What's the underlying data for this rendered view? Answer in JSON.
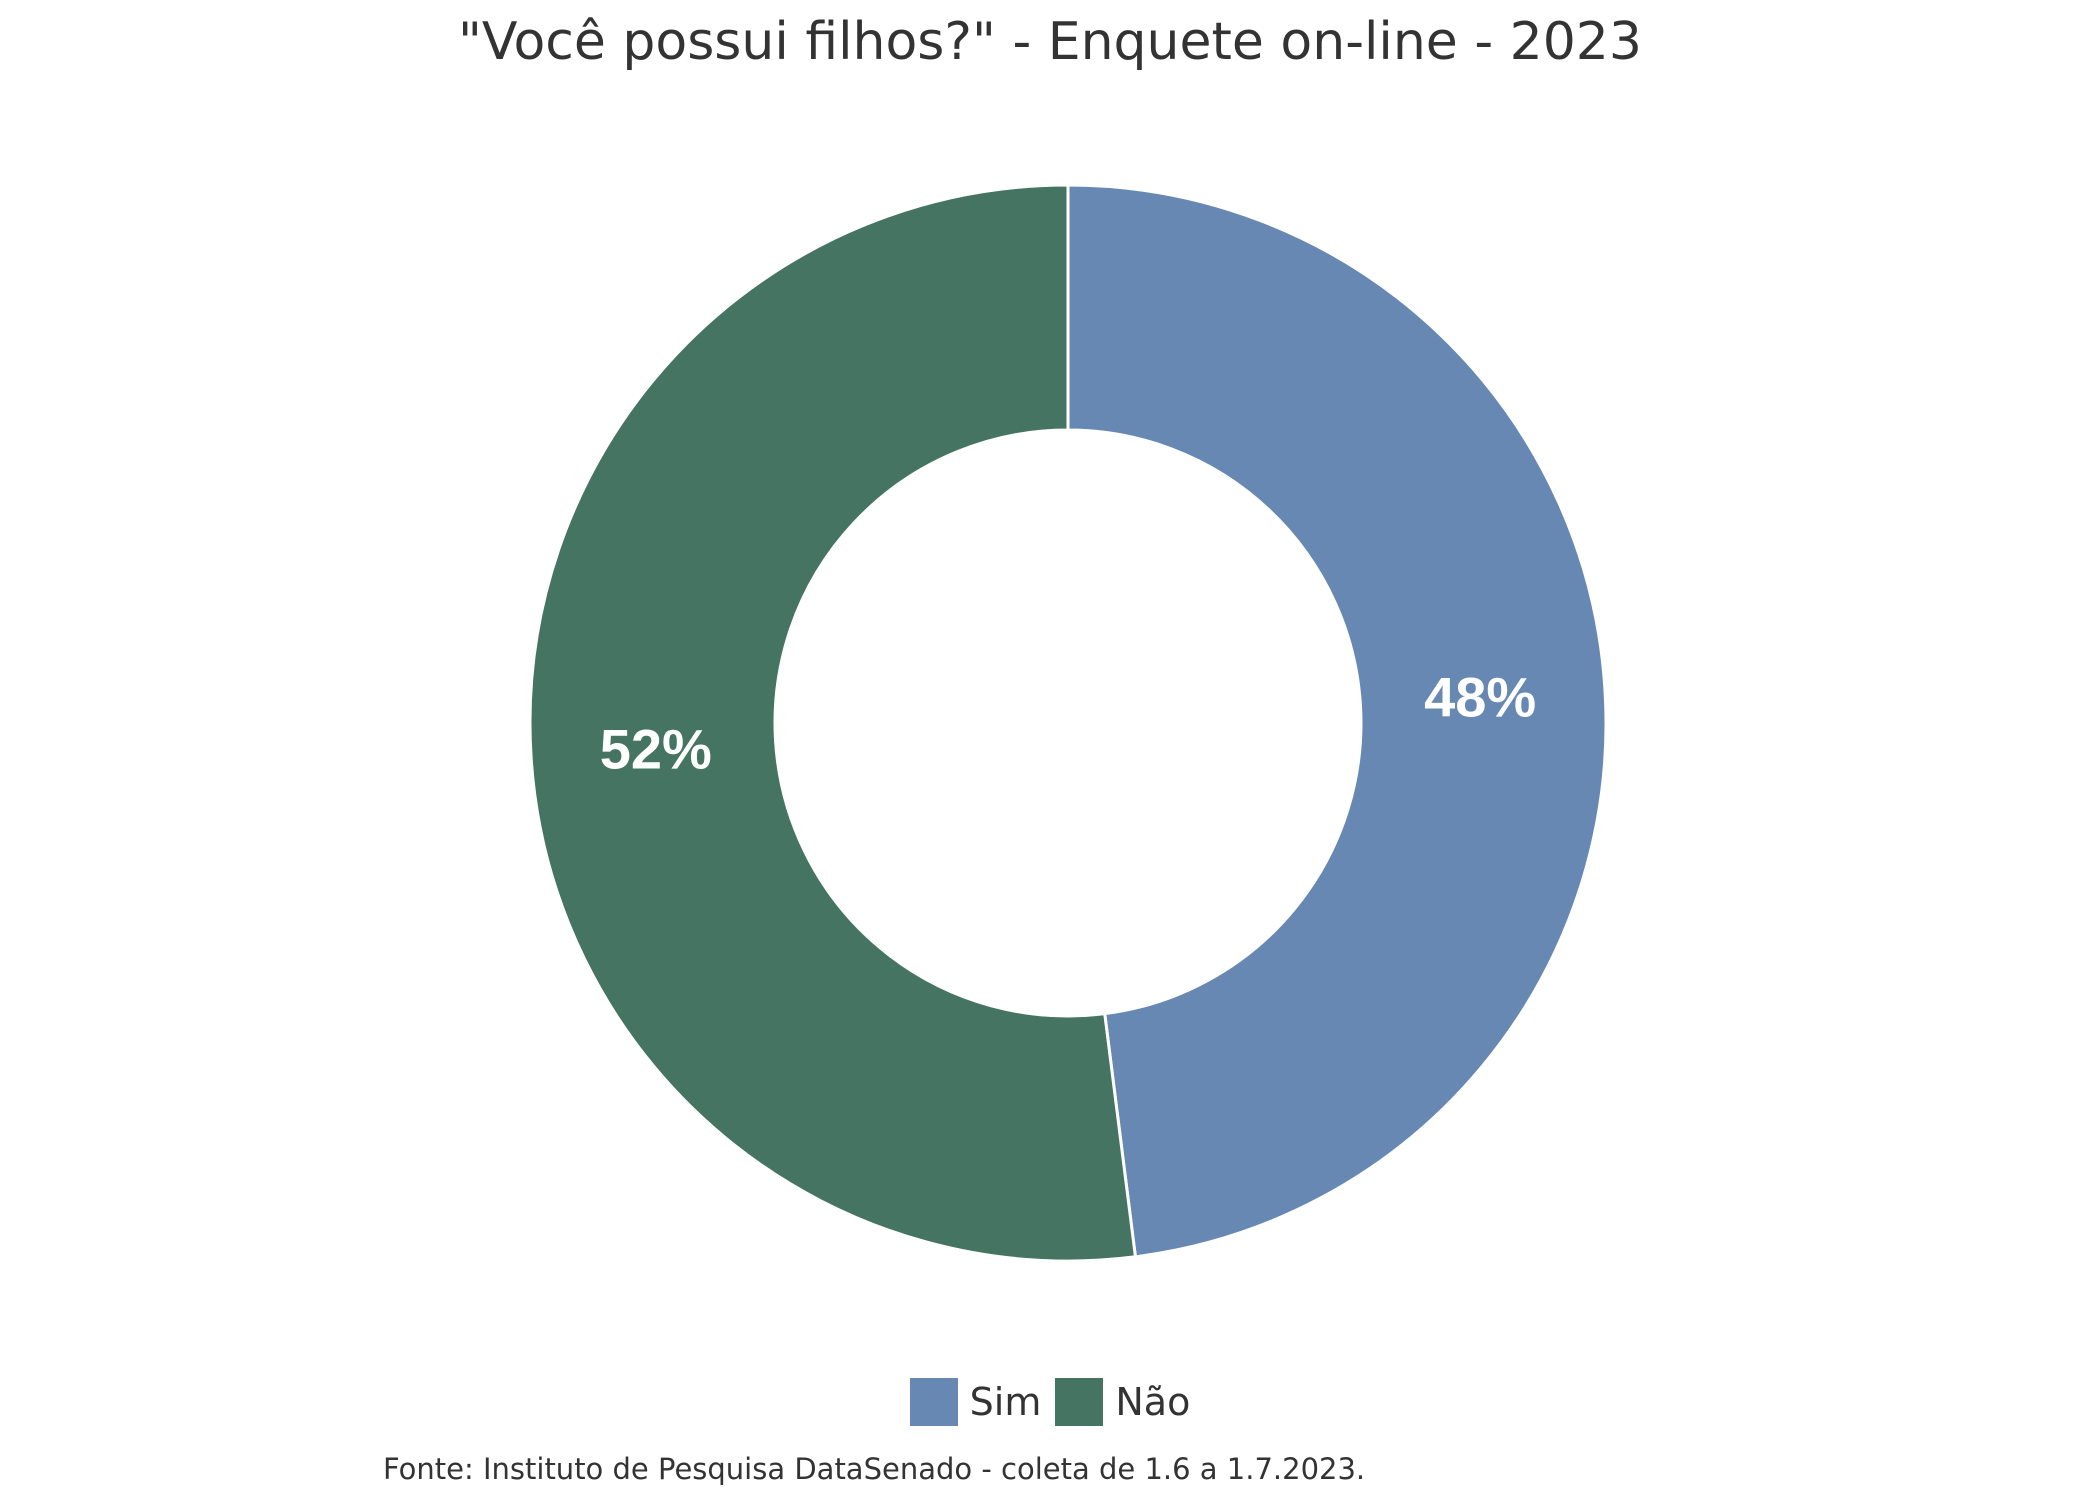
{
  "chart_data": {
    "type": "pie",
    "title": "\"Você possui filhos?\" - Enquete on-line - 2023",
    "categories": [
      "Sim",
      "Não"
    ],
    "values": [
      48,
      52
    ],
    "labels": [
      "48%",
      "52%"
    ],
    "colors": [
      "#6788B2",
      "#467463"
    ],
    "donut": true,
    "legend": "bottom",
    "source": "Fonte: Instituto de Pesquisa DataSenado - coleta de 1.6 a 1.7.2023."
  }
}
